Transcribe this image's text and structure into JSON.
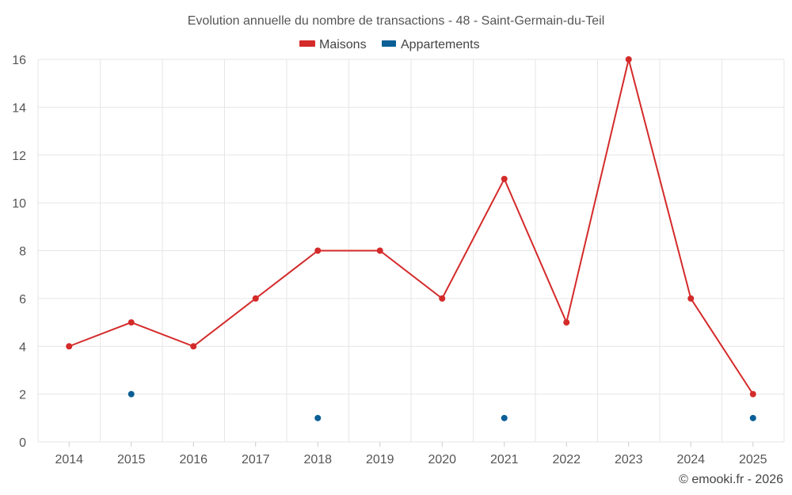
{
  "chart_data": {
    "type": "line",
    "title": "Evolution annuelle du nombre de transactions - 48 - Saint-Germain-du-Teil",
    "categories": [
      "2014",
      "2015",
      "2016",
      "2017",
      "2018",
      "2019",
      "2020",
      "2021",
      "2022",
      "2023",
      "2024",
      "2025"
    ],
    "ylim": [
      0,
      16
    ],
    "yticks": [
      0,
      2,
      4,
      6,
      8,
      10,
      12,
      14,
      16
    ],
    "grid": true,
    "legend_position": "top-center",
    "series": [
      {
        "name": "Maisons",
        "color": "#d42a2a",
        "style": "line-markers",
        "values": [
          4,
          5,
          4,
          6,
          8,
          8,
          6,
          11,
          5,
          16,
          6,
          2
        ]
      },
      {
        "name": "Appartements",
        "color": "#0a5f96",
        "style": "markers",
        "values": [
          null,
          2,
          null,
          null,
          1,
          null,
          null,
          1,
          null,
          null,
          null,
          1
        ]
      }
    ]
  },
  "credit": "© emooki.fr - 2026"
}
